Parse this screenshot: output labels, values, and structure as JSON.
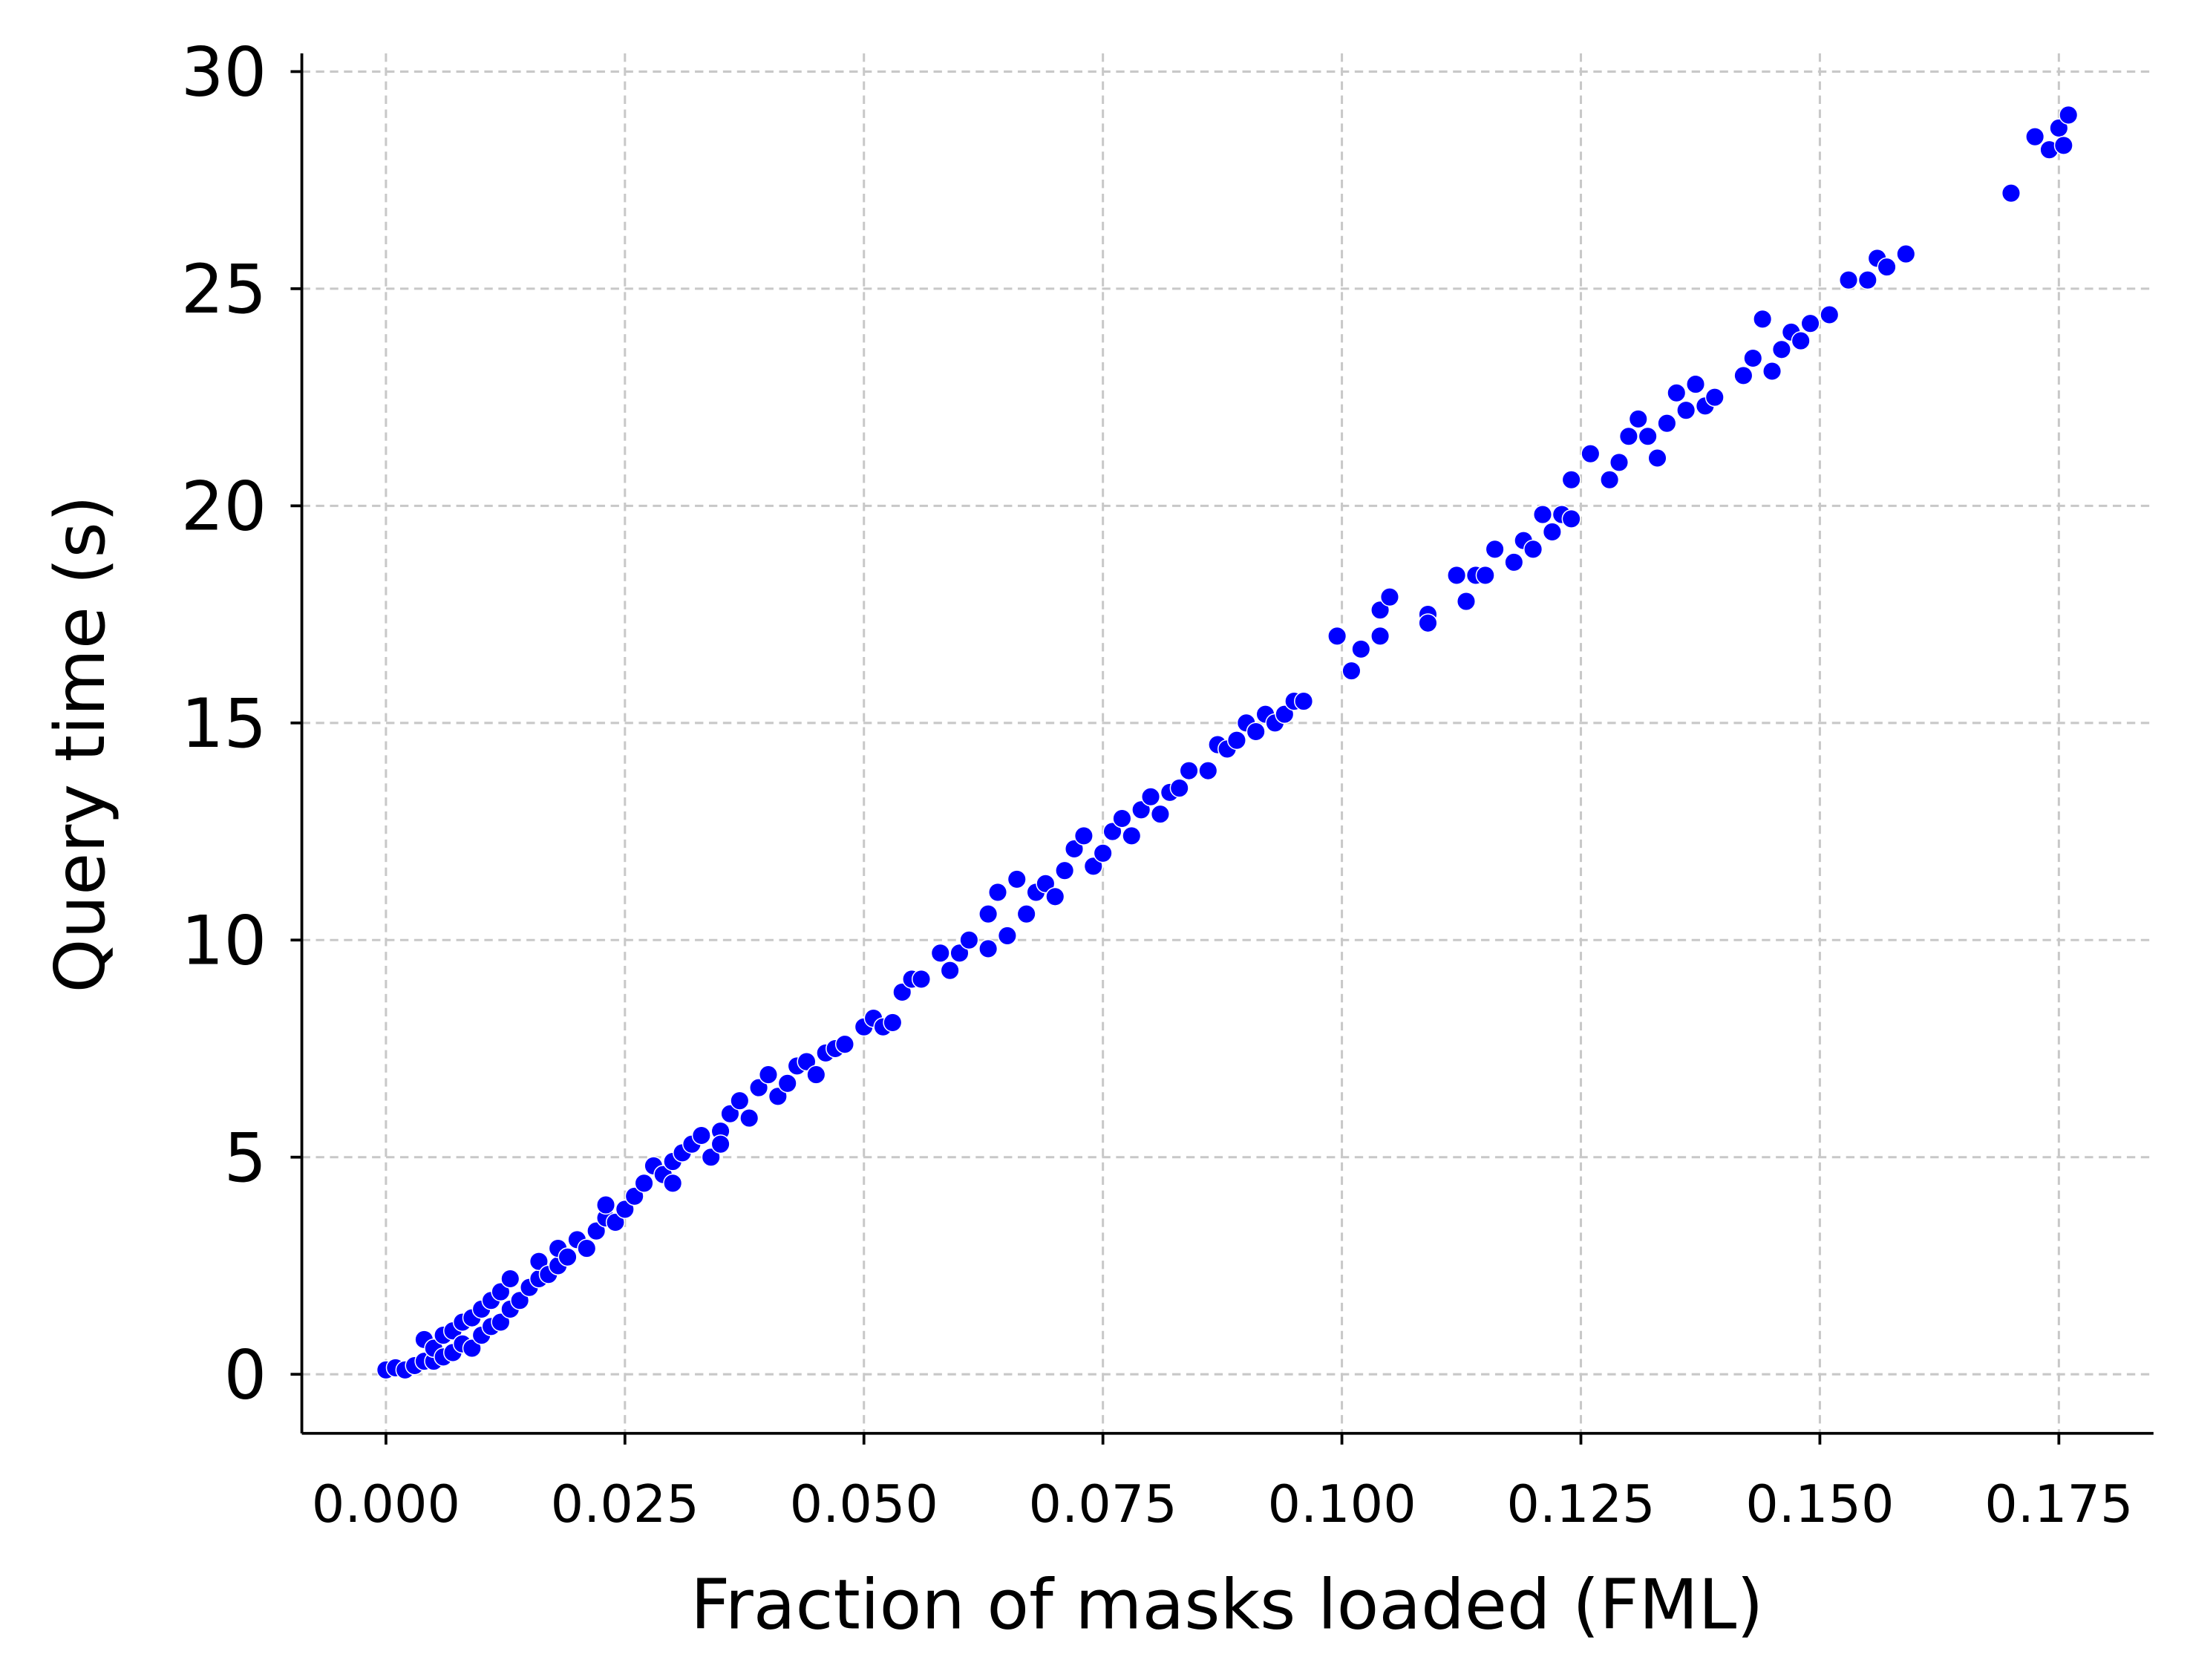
{
  "chart_data": {
    "type": "scatter",
    "xlabel": "Fraction of masks loaded (FML)",
    "ylabel": "Query time (s)",
    "color": "#0000ff",
    "grid": true,
    "xlim": [
      -0.0088,
      0.1849
    ],
    "ylim": [
      -1.36,
      30.42
    ],
    "xticks": [
      {
        "value": 0,
        "label": "0.000"
      },
      {
        "value": 0.025,
        "label": "0.025"
      },
      {
        "value": 0.05,
        "label": "0.050"
      },
      {
        "value": 0.075,
        "label": "0.075"
      },
      {
        "value": 0.1,
        "label": "0.100"
      },
      {
        "value": 0.125,
        "label": "0.125"
      },
      {
        "value": 0.15,
        "label": "0.150"
      },
      {
        "value": 0.175,
        "label": "0.175"
      }
    ],
    "yticks": [
      0,
      5,
      10,
      15,
      20,
      25,
      30
    ],
    "x": [
      0.0,
      0.001,
      0.002,
      0.003,
      0.004,
      0.004,
      0.005,
      0.005,
      0.006,
      0.006,
      0.007,
      0.007,
      0.008,
      0.008,
      0.009,
      0.009,
      0.01,
      0.01,
      0.011,
      0.011,
      0.012,
      0.012,
      0.013,
      0.013,
      0.014,
      0.015,
      0.016,
      0.016,
      0.017,
      0.018,
      0.018,
      0.019,
      0.02,
      0.021,
      0.022,
      0.023,
      0.023,
      0.024,
      0.025,
      0.026,
      0.027,
      0.028,
      0.029,
      0.03,
      0.03,
      0.031,
      0.032,
      0.033,
      0.034,
      0.035,
      0.035,
      0.036,
      0.037,
      0.038,
      0.039,
      0.04,
      0.041,
      0.042,
      0.043,
      0.044,
      0.045,
      0.046,
      0.047,
      0.048,
      0.05,
      0.051,
      0.052,
      0.053,
      0.054,
      0.055,
      0.056,
      0.058,
      0.059,
      0.06,
      0.061,
      0.063,
      0.063,
      0.064,
      0.065,
      0.066,
      0.067,
      0.068,
      0.069,
      0.07,
      0.071,
      0.072,
      0.073,
      0.074,
      0.075,
      0.076,
      0.077,
      0.078,
      0.079,
      0.08,
      0.081,
      0.082,
      0.083,
      0.084,
      0.086,
      0.087,
      0.088,
      0.089,
      0.09,
      0.091,
      0.092,
      0.093,
      0.094,
      0.095,
      0.096,
      0.0995,
      0.101,
      0.102,
      0.104,
      0.104,
      0.105,
      0.109,
      0.109,
      0.112,
      0.113,
      0.114,
      0.115,
      0.116,
      0.118,
      0.119,
      0.12,
      0.121,
      0.122,
      0.123,
      0.124,
      0.124,
      0.126,
      0.128,
      0.129,
      0.13,
      0.131,
      0.132,
      0.133,
      0.134,
      0.135,
      0.136,
      0.137,
      0.138,
      0.139,
      0.142,
      0.143,
      0.144,
      0.145,
      0.146,
      0.147,
      0.148,
      0.149,
      0.151,
      0.153,
      0.155,
      0.156,
      0.157,
      0.159,
      0.17,
      0.1725,
      0.174,
      0.175,
      0.1755,
      0.176
    ],
    "y": [
      0.1,
      0.15,
      0.1,
      0.2,
      0.3,
      0.8,
      0.3,
      0.6,
      0.4,
      0.9,
      0.5,
      1.0,
      0.7,
      1.2,
      0.6,
      1.3,
      0.9,
      1.5,
      1.1,
      1.7,
      1.2,
      1.9,
      1.5,
      2.2,
      1.7,
      2.0,
      2.2,
      2.6,
      2.3,
      2.5,
      2.9,
      2.7,
      3.1,
      2.9,
      3.3,
      3.6,
      3.9,
      3.5,
      3.8,
      4.1,
      4.4,
      4.8,
      4.6,
      4.4,
      4.9,
      5.1,
      5.3,
      5.5,
      5.0,
      5.6,
      5.3,
      6.0,
      6.3,
      5.9,
      6.6,
      6.9,
      6.4,
      6.7,
      7.1,
      7.2,
      6.9,
      7.4,
      7.5,
      7.6,
      8.0,
      8.2,
      8.0,
      8.1,
      8.8,
      9.1,
      9.1,
      9.7,
      9.3,
      9.7,
      10.0,
      9.8,
      10.6,
      11.1,
      10.1,
      11.4,
      10.6,
      11.1,
      11.3,
      11.0,
      11.6,
      12.1,
      12.4,
      11.7,
      12.0,
      12.5,
      12.8,
      12.4,
      13.0,
      13.3,
      12.9,
      13.4,
      13.5,
      13.9,
      13.9,
      14.5,
      14.4,
      14.6,
      15.0,
      14.8,
      15.2,
      15.0,
      15.2,
      15.5,
      15.5,
      17.0,
      16.2,
      16.7,
      17.0,
      17.6,
      17.9,
      17.5,
      17.3,
      18.4,
      17.8,
      18.4,
      18.4,
      19.0,
      18.7,
      19.2,
      19.0,
      19.8,
      19.4,
      19.8,
      19.7,
      20.6,
      21.2,
      20.6,
      21.0,
      21.6,
      22.0,
      21.6,
      21.1,
      21.9,
      22.6,
      22.2,
      22.8,
      22.3,
      22.5,
      23.0,
      23.4,
      24.3,
      23.1,
      23.6,
      24.0,
      23.8,
      24.2,
      24.4,
      25.2,
      25.2,
      25.7,
      25.5,
      25.8,
      27.2,
      28.5,
      28.2,
      28.7,
      28.3,
      29.0
    ]
  }
}
